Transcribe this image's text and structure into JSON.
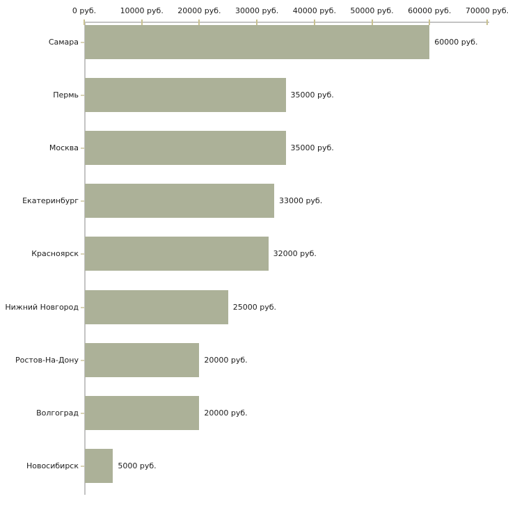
{
  "chart_data": {
    "type": "bar",
    "orientation": "horizontal",
    "title": "",
    "xlabel": "",
    "ylabel": "",
    "grid": "off",
    "legend": "none",
    "axis_position": "top",
    "categories": [
      "Самара",
      "Пермь",
      "Москва",
      "Екатеринбург",
      "Красноярск",
      "Нижний Новгород",
      "Ростов-На-Дону",
      "Волгоград",
      "Новосибирск"
    ],
    "values": [
      60000,
      35000,
      35000,
      33000,
      32000,
      25000,
      20000,
      20000,
      5000
    ],
    "bar_labels": [
      "60000 руб.",
      "35000 руб.",
      "35000 руб.",
      "33000 руб.",
      "32000 руб.",
      "25000 руб.",
      "20000 руб.",
      "20000 руб.",
      "5000 руб."
    ],
    "x_tick_labels": [
      "0 руб.",
      "10000 руб.",
      "20000 руб.",
      "30000 руб.",
      "40000 руб.",
      "50000 руб.",
      "60000 руб.",
      "70000 руб."
    ],
    "x_tick_values": [
      0,
      10000,
      20000,
      30000,
      40000,
      50000,
      60000,
      70000
    ],
    "xlim": [
      0,
      70000
    ],
    "unit": "руб.",
    "colors": {
      "bar": "#acb198",
      "axis_line": "#c3c3c3",
      "tick_mark": "#c9c190",
      "category_tick": "#d8d3b4",
      "text": "#1c1c1c",
      "background": "#ffffff"
    }
  }
}
